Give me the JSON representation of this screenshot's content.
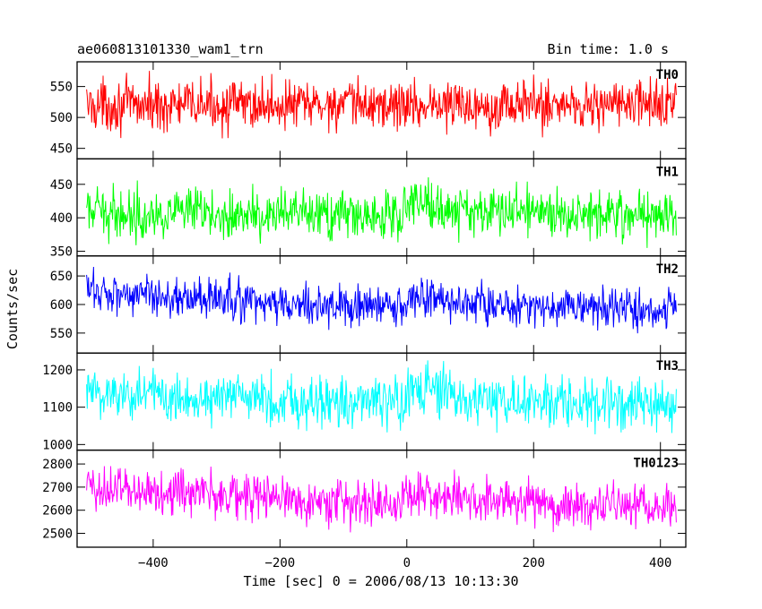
{
  "chart_data": {
    "type": "line",
    "title": "ae060813101330_wam1_trn",
    "subtitle": "Bin time: 1.0 s",
    "xlabel": "Time [sec] 0 = 2006/08/13 10:13:30",
    "ylabel": "Counts/sec",
    "xlim": [
      -520,
      440
    ],
    "x_range_data": [
      -505,
      425
    ],
    "x_ticks": [
      -400,
      -200,
      0,
      200,
      400
    ],
    "grid": false,
    "panels": [
      {
        "name": "TH0",
        "color": "#ff0000",
        "ylim": [
          433,
          590
        ],
        "y_ticks": [
          450,
          500,
          550
        ],
        "mean": 520,
        "noise": 20,
        "trend": [
          [
            -505,
            520
          ],
          [
            0,
            520
          ],
          [
            425,
            522
          ]
        ]
      },
      {
        "name": "TH1",
        "color": "#00ff00",
        "ylim": [
          343,
          488
        ],
        "y_ticks": [
          350,
          400,
          450
        ],
        "mean": 405,
        "noise": 18,
        "trend": [
          [
            -505,
            408
          ],
          [
            -10,
            402
          ],
          [
            0,
            430
          ],
          [
            60,
            412
          ],
          [
            425,
            405
          ]
        ]
      },
      {
        "name": "TH2",
        "color": "#0000ff",
        "ylim": [
          515,
          685
        ],
        "y_ticks": [
          550,
          600,
          650
        ],
        "mean": 600,
        "noise": 18,
        "trend": [
          [
            -505,
            625
          ],
          [
            -200,
            600
          ],
          [
            0,
            595
          ],
          [
            10,
            615
          ],
          [
            100,
            600
          ],
          [
            425,
            590
          ]
        ]
      },
      {
        "name": "TH3",
        "color": "#00ffff",
        "ylim": [
          985,
          1245
        ],
        "y_ticks": [
          1000,
          1100,
          1200
        ],
        "mean": 1120,
        "noise": 35,
        "trend": [
          [
            -505,
            1140
          ],
          [
            -200,
            1120
          ],
          [
            0,
            1110
          ],
          [
            5,
            1150
          ],
          [
            100,
            1120
          ],
          [
            425,
            1100
          ]
        ]
      },
      {
        "name": "TH0123",
        "color": "#ff00ff",
        "ylim": [
          2440,
          2860
        ],
        "y_ticks": [
          2500,
          2600,
          2700,
          2800
        ],
        "mean": 2650,
        "noise": 50,
        "trend": [
          [
            -505,
            2700
          ],
          [
            -300,
            2670
          ],
          [
            -20,
            2620
          ],
          [
            0,
            2680
          ],
          [
            40,
            2660
          ],
          [
            425,
            2600
          ]
        ]
      }
    ]
  }
}
